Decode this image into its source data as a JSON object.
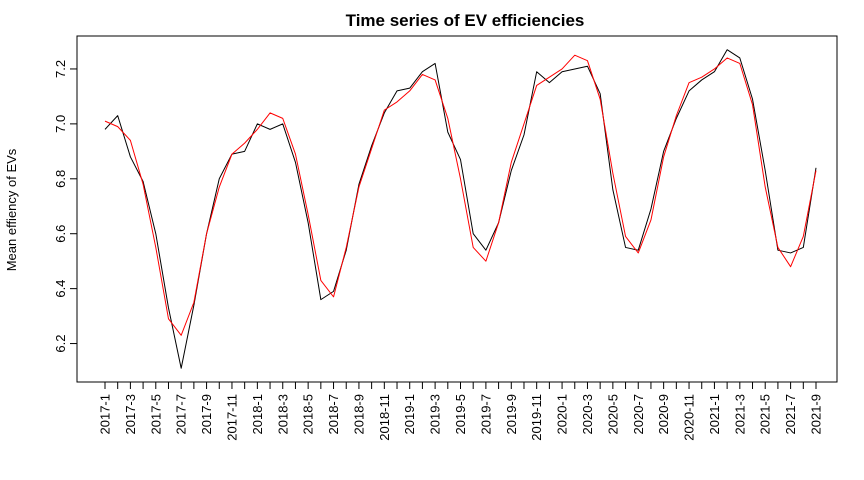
{
  "chart_data": {
    "type": "line",
    "title": "Time series of EV efficiencies",
    "xlabel": "",
    "ylabel": "Mean effiency of EVs",
    "ylim": [
      6.06,
      7.32
    ],
    "yticks": [
      6.2,
      6.4,
      6.6,
      6.8,
      7.0,
      7.2
    ],
    "ytick_labels": [
      "6.2",
      "6.4",
      "6.6",
      "6.8",
      "7.0",
      "7.2"
    ],
    "x": [
      "2017-1",
      "2017-2",
      "2017-3",
      "2017-4",
      "2017-5",
      "2017-6",
      "2017-7",
      "2017-8",
      "2017-9",
      "2017-10",
      "2017-11",
      "2017-12",
      "2018-1",
      "2018-2",
      "2018-3",
      "2018-4",
      "2018-5",
      "2018-6",
      "2018-7",
      "2018-8",
      "2018-9",
      "2018-10",
      "2018-11",
      "2018-12",
      "2019-1",
      "2019-2",
      "2019-3",
      "2019-4",
      "2019-5",
      "2019-6",
      "2019-7",
      "2019-8",
      "2019-9",
      "2019-10",
      "2019-11",
      "2019-12",
      "2020-1",
      "2020-2",
      "2020-3",
      "2020-4",
      "2020-5",
      "2020-6",
      "2020-7",
      "2020-8",
      "2020-9",
      "2020-10",
      "2020-11",
      "2020-12",
      "2021-1",
      "2021-2",
      "2021-3",
      "2021-4",
      "2021-5",
      "2021-6",
      "2021-7",
      "2021-8",
      "2021-9"
    ],
    "xtick_labels": [
      "2017-1",
      "2017-3",
      "2017-5",
      "2017-7",
      "2017-9",
      "2017-11",
      "2018-1",
      "2018-3",
      "2018-5",
      "2018-7",
      "2018-9",
      "2018-11",
      "2019-1",
      "2019-3",
      "2019-5",
      "2019-7",
      "2019-9",
      "2019-11",
      "2020-1",
      "2020-3",
      "2020-5",
      "2020-7",
      "2020-9",
      "2020-11",
      "2021-1",
      "2021-3",
      "2021-5",
      "2021-7",
      "2021-9"
    ],
    "grid": false,
    "series": [
      {
        "color": "#000000",
        "values": [
          6.98,
          7.03,
          6.88,
          6.79,
          6.6,
          6.33,
          6.11,
          6.34,
          6.6,
          6.8,
          6.89,
          6.9,
          7.0,
          6.98,
          7.0,
          6.86,
          6.64,
          6.36,
          6.39,
          6.54,
          6.78,
          6.92,
          7.04,
          7.12,
          7.13,
          7.19,
          7.22,
          6.97,
          6.87,
          6.6,
          6.54,
          6.64,
          6.83,
          6.96,
          7.19,
          7.15,
          7.19,
          7.2,
          7.21,
          7.11,
          6.76,
          6.55,
          6.54,
          6.69,
          6.9,
          7.02,
          7.12,
          7.16,
          7.19,
          7.27,
          7.24,
          7.09,
          6.83,
          6.54,
          6.53,
          6.55,
          6.84
        ]
      },
      {
        "color": "#ff0000",
        "values": [
          7.01,
          6.99,
          6.94,
          6.78,
          6.55,
          6.29,
          6.23,
          6.35,
          6.6,
          6.77,
          6.89,
          6.93,
          6.98,
          7.04,
          7.02,
          6.89,
          6.67,
          6.43,
          6.37,
          6.55,
          6.77,
          6.91,
          7.05,
          7.08,
          7.12,
          7.18,
          7.16,
          7.02,
          6.8,
          6.55,
          6.5,
          6.64,
          6.86,
          7.0,
          7.14,
          7.17,
          7.2,
          7.25,
          7.23,
          7.09,
          6.82,
          6.59,
          6.53,
          6.65,
          6.88,
          7.03,
          7.15,
          7.17,
          7.2,
          7.24,
          7.22,
          7.07,
          6.77,
          6.55,
          6.48,
          6.59,
          6.83
        ]
      }
    ]
  }
}
